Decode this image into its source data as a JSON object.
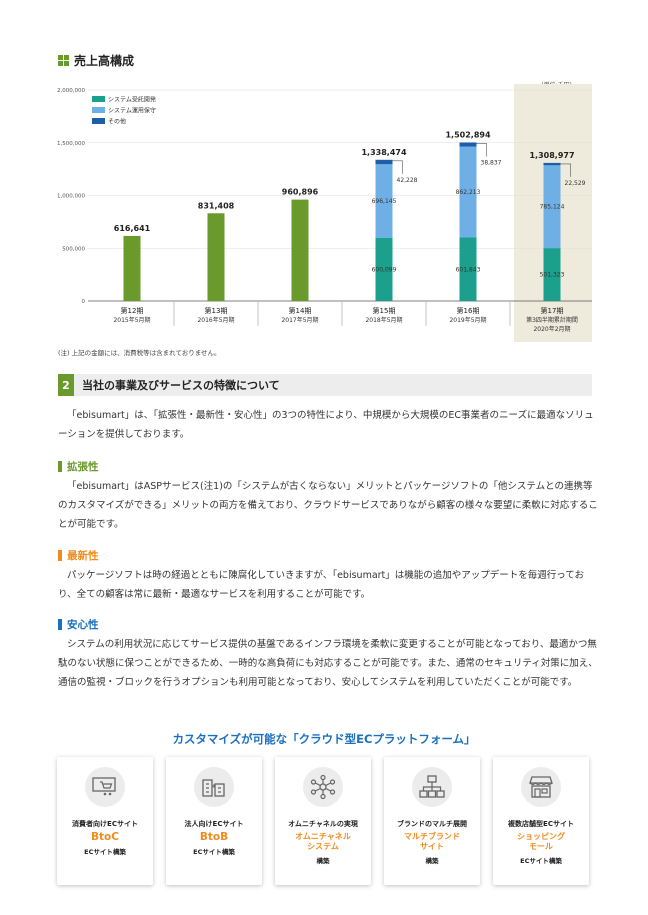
{
  "section": {
    "title": "売上高構成"
  },
  "chart_data": {
    "type": "bar",
    "unit_label": "(単位:千円)",
    "ylim": [
      0,
      2000000
    ],
    "yticks": [
      "2,000,000",
      "1,500,000",
      "1,000,000",
      "500,000",
      "0"
    ],
    "legend": [
      "システム受託開発",
      "システム運用保守",
      "その他"
    ],
    "legend_colors": [
      "#1aa08c",
      "#6eb0e6",
      "#1d5fa6"
    ],
    "total_color": "#6a9a2c",
    "highlight_color": "#eeeadc",
    "categories": [
      {
        "period": "第12期",
        "date": "2015年5月期",
        "date2": ""
      },
      {
        "period": "第13期",
        "date": "2016年5月期",
        "date2": ""
      },
      {
        "period": "第14期",
        "date": "2017年5月期",
        "date2": ""
      },
      {
        "period": "第15期",
        "date": "2018年5月期",
        "date2": ""
      },
      {
        "period": "第16期",
        "date": "2019年5月期",
        "date2": ""
      },
      {
        "period": "第17期",
        "date": "第3四半期累計期間",
        "date2": "2020年2月期"
      }
    ],
    "totals": [
      616641,
      831408,
      960896,
      1338474,
      1502894,
      1308977
    ],
    "total_labels": [
      "616,641",
      "831,408",
      "960,896",
      "1,338,474",
      "1,502,894",
      "1,308,977"
    ],
    "series": [
      {
        "name": "システム受託開発",
        "values": [
          null,
          null,
          null,
          600099,
          601843,
          501323
        ],
        "labels": [
          "",
          "",
          "",
          "600,099",
          "601,843",
          "501,323"
        ]
      },
      {
        "name": "システム運用保守",
        "values": [
          null,
          null,
          null,
          696145,
          862213,
          785124
        ],
        "labels": [
          "",
          "",
          "",
          "696,145",
          "862,213",
          "785,124"
        ]
      },
      {
        "name": "その他",
        "values": [
          null,
          null,
          null,
          42228,
          38837,
          22529
        ],
        "labels": [
          "",
          "",
          "",
          "42,228",
          "38,837",
          "22,529"
        ]
      }
    ]
  },
  "note": "(注) 上記の金額には、消費税等は含まれておりません。",
  "section2": {
    "num": "2",
    "title": "当社の事業及びサービスの特徴について",
    "intro": "「ebisumart」は、「拡張性・最新性・安心性」の3つの特性により、中規模から大規模のEC事業者のニーズに最適なソリューションを提供しております。"
  },
  "features": [
    {
      "title": "拡張性",
      "color": "#6a9a2c",
      "text": "「ebisumart」はASPサービス(注1)の「システムが古くならない」メリットとパッケージソフトの「他システムとの連携等のカスタマイズができる」メリットの両方を備えており、クラウドサービスでありながら顧客の様々な要望に柔軟に対応することが可能です。"
    },
    {
      "title": "最新性",
      "color": "#f08c1e",
      "text": "パッケージソフトは時の経過とともに陳腐化していきますが、「ebisumart」は機能の追加やアップデートを毎週行っており、全ての顧客は常に最新・最適なサービスを利用することが可能です。"
    },
    {
      "title": "安心性",
      "color": "#1a6fbf",
      "text": "システムの利用状況に応じてサービス提供の基盤であるインフラ環境を柔軟に変更することが可能となっており、最適かつ無駄のない状態に保つことができるため、一時的な高負荷にも対応することが可能です。また、通常のセキュリティ対策に加え、通信の監視・ブロックを行うオプションも利用可能となっており、安心してシステムを利用していただくことが可能です。"
    }
  ],
  "platform": {
    "title": "カスタマイズが可能な「クラウド型ECプラットフォーム」",
    "cards": [
      {
        "icon": "cart-monitor-icon",
        "t1": "消費者向けECサイト",
        "t2a": "BtoC",
        "t2b": "",
        "t3": "ECサイト構築"
      },
      {
        "icon": "buildings-icon",
        "t1": "法人向けECサイト",
        "t2a": "BtoB",
        "t2b": "",
        "t3": "ECサイト構築"
      },
      {
        "icon": "network-icon",
        "t1": "オムニチャネルの実現",
        "t2a": "オムニチャネル",
        "t2b": "システム",
        "t3": "構築"
      },
      {
        "icon": "hierarchy-icon",
        "t1": "ブランドのマルチ展開",
        "t2a": "マルチブランド",
        "t2b": "サイト",
        "t3": "構築"
      },
      {
        "icon": "storefront-icon",
        "t1": "複数店舗型ECサイト",
        "t2a": "ショッピング",
        "t2b": "モール",
        "t3": "ECサイト構築"
      }
    ]
  }
}
